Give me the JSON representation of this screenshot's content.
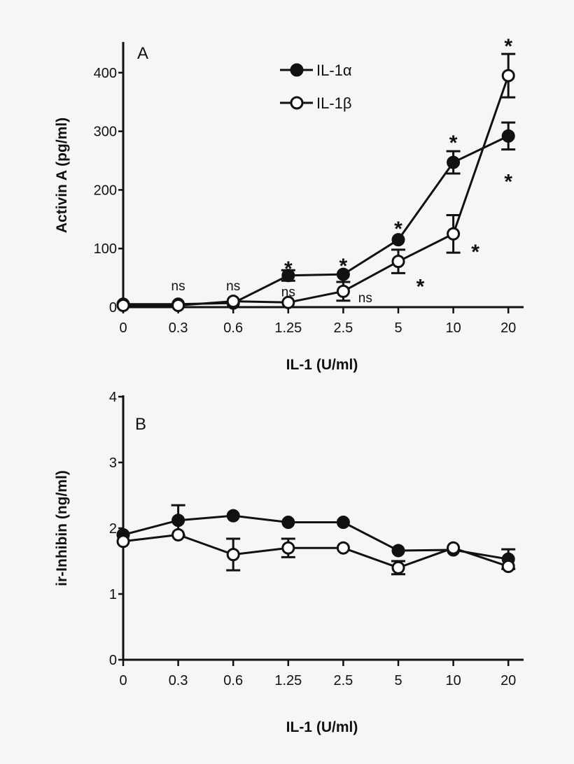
{
  "chart_data": [
    {
      "type": "line",
      "panel_label": "A",
      "xlabel": "IL-1 (U/ml)",
      "ylabel": "Activin A (pg/ml)",
      "categories": [
        "0",
        "0.3",
        "0.6",
        "1.25",
        "2.5",
        "5",
        "10",
        "20"
      ],
      "ylim": [
        0,
        450
      ],
      "yticks": [
        0,
        100,
        200,
        300,
        400
      ],
      "grid": false,
      "legend_position": "top-center",
      "series": [
        {
          "name": "IL-1α",
          "marker": "filled-circle",
          "values": [
            5,
            5,
            7,
            54,
            56,
            115,
            247,
            292
          ],
          "errors": [
            0,
            0,
            0,
            9,
            0,
            0,
            19,
            23
          ]
        },
        {
          "name": "IL-1β",
          "marker": "open-circle",
          "values": [
            3,
            3,
            10,
            8,
            27,
            78,
            125,
            395
          ],
          "errors": [
            0,
            0,
            0,
            0,
            16,
            20,
            32,
            37
          ]
        }
      ],
      "annotations": [
        {
          "text": "ns",
          "category": "0.3",
          "y": 37,
          "position": "center"
        },
        {
          "text": "ns",
          "category": "0.6",
          "y": 37,
          "position": "center"
        },
        {
          "text": "ns",
          "category": "1.25",
          "y": 27,
          "position": "center"
        },
        {
          "text": "ns",
          "category": "2.5",
          "y": 17,
          "position": "right"
        },
        {
          "text": "*",
          "category": "1.25",
          "y": 75,
          "position": "center"
        },
        {
          "text": "*",
          "category": "2.5",
          "y": 80,
          "position": "center"
        },
        {
          "text": "*",
          "category": "5",
          "y": 143,
          "position": "center"
        },
        {
          "text": "*",
          "category": "5",
          "y": 45,
          "position": "right"
        },
        {
          "text": "*",
          "category": "10",
          "y": 290,
          "position": "center"
        },
        {
          "text": "*",
          "category": "10",
          "y": 104,
          "position": "right"
        },
        {
          "text": "*",
          "category": "20",
          "y": 455,
          "position": "center"
        },
        {
          "text": "*",
          "category": "20",
          "y": 224,
          "position": "center"
        }
      ]
    },
    {
      "type": "line",
      "panel_label": "B",
      "xlabel": "IL-1 (U/ml)",
      "ylabel": "ir-Inhibin (ng/ml)",
      "categories": [
        "0",
        "0.3",
        "0.6",
        "1.25",
        "2.5",
        "5",
        "10",
        "20"
      ],
      "ylim": [
        0,
        4
      ],
      "yticks": [
        0,
        1,
        2,
        3,
        4
      ],
      "grid": false,
      "series": [
        {
          "name": "IL-1α",
          "marker": "filled-circle",
          "values": [
            1.9,
            2.12,
            2.19,
            2.09,
            2.09,
            1.66,
            1.67,
            1.53
          ],
          "errors": [
            0,
            0.23,
            0,
            0,
            0,
            0,
            0,
            0.15
          ]
        },
        {
          "name": "IL-1β",
          "marker": "open-circle",
          "values": [
            1.8,
            1.9,
            1.6,
            1.7,
            1.7,
            1.4,
            1.7,
            1.42
          ],
          "errors": [
            0,
            0,
            0.24,
            0.14,
            0,
            0.1,
            0,
            0
          ]
        }
      ],
      "annotations": []
    }
  ]
}
